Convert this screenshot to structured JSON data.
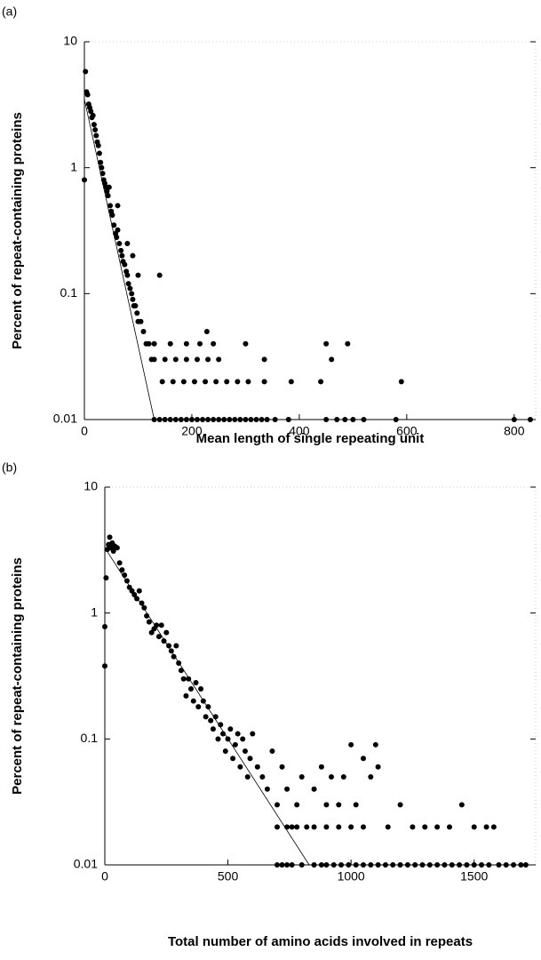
{
  "chart_data": [
    {
      "type": "scatter",
      "panel_label": "(a)",
      "xlabel": "Mean length of single repeating unit",
      "ylabel": "Percent of repeat-containing proteins",
      "log_y": true,
      "color": "#000000",
      "xlim": [
        0,
        840
      ],
      "ylim": [
        0.01,
        10
      ],
      "xticks": [
        0,
        200,
        400,
        600,
        800
      ],
      "yticks": [
        0.01,
        0.1,
        1,
        10
      ],
      "x": [
        0,
        2,
        4,
        6,
        8,
        10,
        12,
        14,
        16,
        18,
        20,
        22,
        24,
        26,
        28,
        30,
        32,
        34,
        36,
        38,
        40,
        42,
        44,
        46,
        48,
        50,
        52,
        55,
        58,
        60,
        62,
        65,
        68,
        70,
        72,
        75,
        78,
        80,
        82,
        85,
        88,
        90,
        92,
        95,
        98,
        100,
        105,
        110,
        115,
        120,
        125,
        130,
        140,
        100,
        90,
        80,
        62,
        150,
        170,
        190,
        210,
        230,
        250,
        335,
        460,
        145,
        165,
        185,
        205,
        225,
        245,
        265,
        285,
        305,
        335,
        385,
        440,
        130,
        160,
        190,
        215,
        240,
        300,
        450,
        490,
        228,
        130,
        140,
        150,
        160,
        170,
        180,
        190,
        200,
        210,
        220,
        230,
        240,
        250,
        260,
        270,
        280,
        290,
        300,
        310,
        320,
        330,
        340,
        355,
        380,
        450,
        470,
        485,
        500,
        520,
        580,
        800,
        830,
        590
      ],
      "values": [
        0.8,
        5.8,
        4,
        3.8,
        3.2,
        3,
        2.8,
        2.5,
        2.6,
        2.2,
        2,
        1.8,
        1.6,
        1.5,
        1.3,
        1.1,
        1.0,
        0.9,
        0.8,
        0.75,
        0.7,
        0.65,
        0.6,
        0.7,
        0.5,
        0.45,
        0.42,
        0.35,
        0.3,
        0.28,
        0.32,
        0.25,
        0.22,
        0.2,
        0.18,
        0.17,
        0.15,
        0.14,
        0.12,
        0.11,
        0.1,
        0.09,
        0.08,
        0.08,
        0.07,
        0.06,
        0.06,
        0.05,
        0.04,
        0.04,
        0.03,
        0.03,
        0.14,
        0.14,
        0.2,
        0.25,
        0.5,
        0.03,
        0.03,
        0.03,
        0.03,
        0.03,
        0.03,
        0.03,
        0.03,
        0.02,
        0.02,
        0.02,
        0.02,
        0.02,
        0.02,
        0.02,
        0.02,
        0.02,
        0.02,
        0.02,
        0.02,
        0.04,
        0.04,
        0.04,
        0.04,
        0.04,
        0.04,
        0.04,
        0.04,
        0.05,
        0.01,
        0.01,
        0.01,
        0.01,
        0.01,
        0.01,
        0.01,
        0.01,
        0.01,
        0.01,
        0.01,
        0.01,
        0.01,
        0.01,
        0.01,
        0.01,
        0.01,
        0.01,
        0.01,
        0.01,
        0.01,
        0.01,
        0.01,
        0.01,
        0.01,
        0.01,
        0.01,
        0.01,
        0.01,
        0.01,
        0.01,
        0.01,
        0.02
      ],
      "fit": {
        "x": [
          0,
          130
        ],
        "values": [
          3.5,
          0.01
        ]
      }
    },
    {
      "type": "scatter",
      "panel_label": "(b)",
      "xlabel": "Total number of amino acids involved in repeats",
      "ylabel": "Percent of repeat-containing proteins",
      "log_y": true,
      "color": "#000000",
      "xlim": [
        0,
        1750
      ],
      "ylim": [
        0.01,
        10
      ],
      "xticks": [
        0,
        500,
        1000,
        1500
      ],
      "yticks": [
        0.01,
        0.1,
        1,
        10
      ],
      "x": [
        0,
        0,
        5,
        10,
        15,
        20,
        25,
        30,
        35,
        40,
        50,
        60,
        70,
        80,
        90,
        100,
        110,
        120,
        130,
        140,
        150,
        160,
        170,
        180,
        190,
        200,
        210,
        220,
        230,
        240,
        250,
        260,
        270,
        280,
        290,
        300,
        310,
        320,
        330,
        340,
        350,
        360,
        370,
        380,
        390,
        400,
        410,
        420,
        430,
        440,
        450,
        460,
        470,
        480,
        490,
        500,
        510,
        520,
        530,
        540,
        550,
        560,
        570,
        580,
        590,
        600,
        620,
        640,
        660,
        680,
        700,
        720,
        740,
        760,
        780,
        800,
        820,
        850,
        880,
        900,
        920,
        950,
        970,
        1000,
        1020,
        1050,
        1080,
        1100,
        1110,
        1150,
        1200,
        1250,
        1300,
        1350,
        1400,
        1450,
        1500,
        1550,
        1580,
        700,
        740,
        780,
        850,
        900,
        950,
        1000,
        1050,
        700,
        720,
        740,
        760,
        800,
        850,
        880,
        900,
        930,
        960,
        990,
        1020,
        1050,
        1080,
        1110,
        1140,
        1170,
        1200,
        1230,
        1260,
        1290,
        1320,
        1350,
        1380,
        1410,
        1440,
        1470,
        1500,
        1530,
        1560,
        1600,
        1630,
        1660,
        1690,
        1710
      ],
      "values": [
        0.38,
        0.78,
        1.9,
        3.2,
        3.5,
        4,
        3.3,
        3.6,
        3.1,
        3.4,
        3.3,
        2.5,
        2.2,
        2,
        1.8,
        1.6,
        1.5,
        1.4,
        1.3,
        1.5,
        1.2,
        1.1,
        0.95,
        0.85,
        0.7,
        0.75,
        0.8,
        0.65,
        0.8,
        0.6,
        0.7,
        0.55,
        0.5,
        0.45,
        0.55,
        0.4,
        0.35,
        0.3,
        0.22,
        0.3,
        0.25,
        0.2,
        0.28,
        0.18,
        0.25,
        0.2,
        0.15,
        0.18,
        0.14,
        0.12,
        0.15,
        0.1,
        0.13,
        0.11,
        0.08,
        0.1,
        0.12,
        0.07,
        0.09,
        0.11,
        0.06,
        0.1,
        0.08,
        0.05,
        0.07,
        0.11,
        0.06,
        0.05,
        0.04,
        0.08,
        0.03,
        0.06,
        0.04,
        0.02,
        0.03,
        0.05,
        0.02,
        0.04,
        0.06,
        0.03,
        0.05,
        0.03,
        0.05,
        0.09,
        0.03,
        0.07,
        0.05,
        0.09,
        0.06,
        0.02,
        0.03,
        0.02,
        0.02,
        0.02,
        0.02,
        0.03,
        0.02,
        0.02,
        0.02,
        0.02,
        0.02,
        0.02,
        0.02,
        0.02,
        0.02,
        0.02,
        0.02,
        0.01,
        0.01,
        0.01,
        0.01,
        0.01,
        0.01,
        0.01,
        0.01,
        0.01,
        0.01,
        0.01,
        0.01,
        0.01,
        0.01,
        0.01,
        0.01,
        0.01,
        0.01,
        0.01,
        0.01,
        0.01,
        0.01,
        0.01,
        0.01,
        0.01,
        0.01,
        0.01,
        0.01,
        0.01,
        0.01,
        0.01,
        0.01,
        0.01,
        0.01,
        0.01
      ],
      "fit": {
        "x": [
          0,
          830
        ],
        "values": [
          3.3,
          0.01
        ]
      }
    }
  ]
}
